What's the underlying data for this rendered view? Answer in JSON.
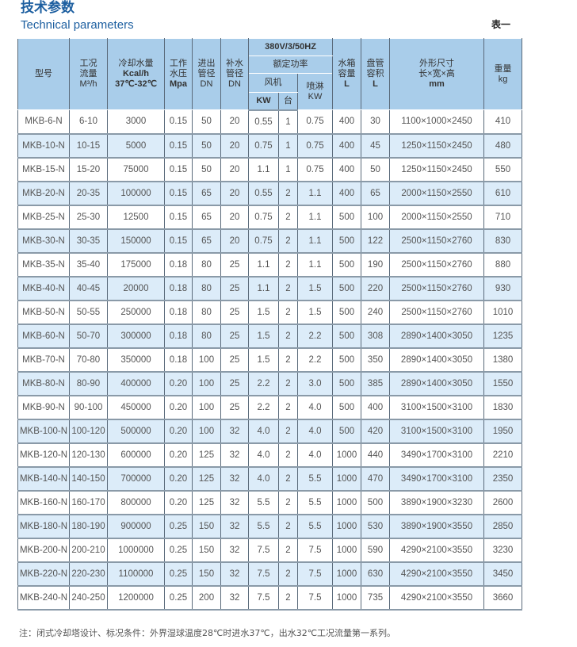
{
  "title_cn": "技术参数",
  "title_en": "Technical parameters",
  "table_no": "表一",
  "header": {
    "model": "型号",
    "flow": [
      "工况",
      "流量",
      "M³/h"
    ],
    "cooling": [
      "冷却水量",
      "Kcal/h",
      "37℃-32℃"
    ],
    "pressure": [
      "工作",
      "水压",
      "Mpa"
    ],
    "inout": [
      "进出",
      "管径",
      "DN"
    ],
    "makeup": [
      "补水",
      "管径",
      "DN"
    ],
    "power_supply": "380V/3/50HZ",
    "rated_power": "额定功率",
    "fan": "风机",
    "spray": [
      "喷淋",
      "KW"
    ],
    "fan_kw": "KW",
    "fan_qty": "台",
    "tank": [
      "水箱",
      "容量",
      "L"
    ],
    "coil": [
      "盘管",
      "容积",
      "L"
    ],
    "dims": [
      "外形尺寸",
      "长×宽×高",
      "mm"
    ],
    "weight": [
      "重量",
      "kg"
    ]
  },
  "rows": [
    [
      "MKB-6-N",
      "6-10",
      "3000",
      "0.15",
      "50",
      "20",
      "0.55",
      "1",
      "0.75",
      "400",
      "30",
      "1100×1000×2450",
      "410"
    ],
    [
      "MKB-10-N",
      "10-15",
      "5000",
      "0.15",
      "50",
      "20",
      "0.75",
      "1",
      "0.75",
      "400",
      "45",
      "1250×1150×2450",
      "480"
    ],
    [
      "MKB-15-N",
      "15-20",
      "75000",
      "0.15",
      "50",
      "20",
      "1.1",
      "1",
      "0.75",
      "400",
      "50",
      "1250×1150×2450",
      "550"
    ],
    [
      "MKB-20-N",
      "20-35",
      "100000",
      "0.15",
      "65",
      "20",
      "0.55",
      "2",
      "1.1",
      "400",
      "65",
      "2000×1150×2550",
      "610"
    ],
    [
      "MKB-25-N",
      "25-30",
      "12500",
      "0.15",
      "65",
      "20",
      "0.75",
      "2",
      "1.1",
      "500",
      "100",
      "2000×1150×2550",
      "710"
    ],
    [
      "MKB-30-N",
      "30-35",
      "150000",
      "0.15",
      "65",
      "20",
      "0.75",
      "2",
      "1.1",
      "500",
      "122",
      "2500×1150×2760",
      "830"
    ],
    [
      "MKB-35-N",
      "35-40",
      "175000",
      "0.18",
      "80",
      "25",
      "1.1",
      "2",
      "1.1",
      "500",
      "190",
      "2500×1150×2760",
      "880"
    ],
    [
      "MKB-40-N",
      "40-45",
      "20000",
      "0.18",
      "80",
      "25",
      "1.1",
      "2",
      "1.5",
      "500",
      "220",
      "2500×1150×2760",
      "930"
    ],
    [
      "MKB-50-N",
      "50-55",
      "250000",
      "0.18",
      "80",
      "25",
      "1.5",
      "2",
      "1.5",
      "500",
      "240",
      "2500×1150×2760",
      "1010"
    ],
    [
      "MKB-60-N",
      "50-70",
      "300000",
      "0.18",
      "80",
      "25",
      "1.5",
      "2",
      "2.2",
      "500",
      "308",
      "2890×1400×3050",
      "1235"
    ],
    [
      "MKB-70-N",
      "70-80",
      "350000",
      "0.18",
      "100",
      "25",
      "1.5",
      "2",
      "2.2",
      "500",
      "350",
      "2890×1400×3050",
      "1380"
    ],
    [
      "MKB-80-N",
      "80-90",
      "400000",
      "0.20",
      "100",
      "25",
      "2.2",
      "2",
      "3.0",
      "500",
      "385",
      "2890×1400×3050",
      "1550"
    ],
    [
      "MKB-90-N",
      "90-100",
      "450000",
      "0.20",
      "100",
      "25",
      "2.2",
      "2",
      "4.0",
      "500",
      "400",
      "3100×1500×3100",
      "1830"
    ],
    [
      "MKB-100-N",
      "100-120",
      "500000",
      "0.20",
      "100",
      "32",
      "4.0",
      "2",
      "4.0",
      "500",
      "420",
      "3100×1500×3100",
      "1950"
    ],
    [
      "MKB-120-N",
      "120-130",
      "600000",
      "0.20",
      "125",
      "32",
      "4.0",
      "2",
      "4.0",
      "1000",
      "440",
      "3490×1700×3100",
      "2210"
    ],
    [
      "MKB-140-N",
      "140-150",
      "700000",
      "0.20",
      "125",
      "32",
      "4.0",
      "2",
      "5.5",
      "1000",
      "470",
      "3490×1700×3100",
      "2350"
    ],
    [
      "MKB-160-N",
      "160-170",
      "800000",
      "0.20",
      "125",
      "32",
      "5.5",
      "2",
      "5.5",
      "1000",
      "500",
      "3890×1900×3230",
      "2600"
    ],
    [
      "MKB-180-N",
      "180-190",
      "900000",
      "0.25",
      "150",
      "32",
      "5.5",
      "2",
      "5.5",
      "1000",
      "530",
      "3890×1900×3550",
      "2850"
    ],
    [
      "MKB-200-N",
      "200-210",
      "1000000",
      "0.25",
      "150",
      "32",
      "7.5",
      "2",
      "7.5",
      "1000",
      "590",
      "4290×2100×3550",
      "3230"
    ],
    [
      "MKB-220-N",
      "220-230",
      "1100000",
      "0.25",
      "150",
      "32",
      "7.5",
      "2",
      "7.5",
      "1000",
      "630",
      "4290×2100×3550",
      "3450"
    ],
    [
      "MKB-240-N",
      "240-250",
      "1200000",
      "0.25",
      "200",
      "32",
      "7.5",
      "2",
      "7.5",
      "1000",
      "735",
      "4290×2100×3550",
      "3660"
    ]
  ],
  "note": "注：闭式冷却塔设计、标况条件：外界湿球温度28℃时进水37℃，出水32℃工况流量第一系列。",
  "colors": {
    "title": "#1d5fa0",
    "header_bg": "#a9cdea",
    "row_alt": "#dcecf9"
  }
}
